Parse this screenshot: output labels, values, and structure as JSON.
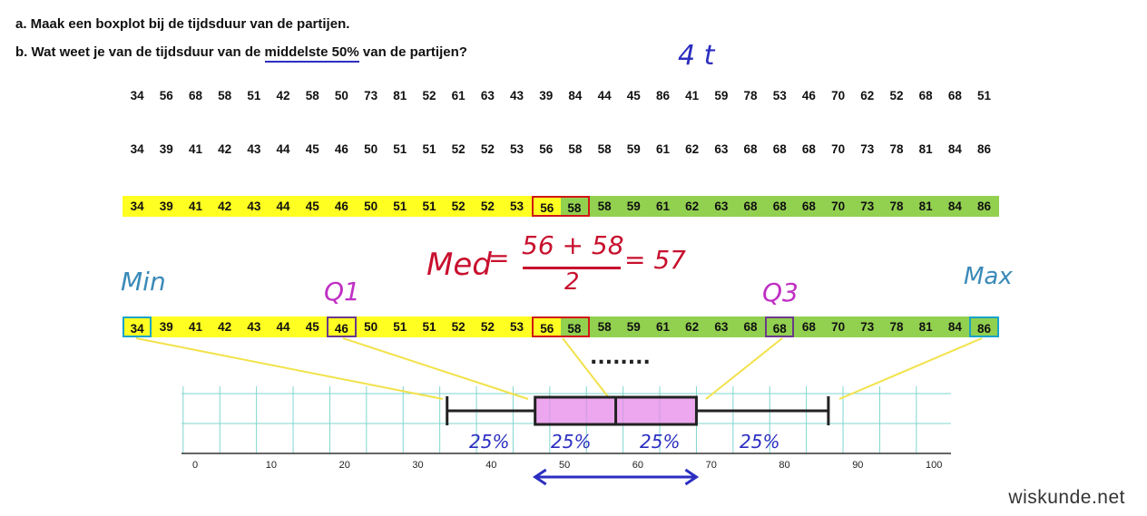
{
  "questions": {
    "a": "a. Maak een boxplot bij de tijdsduur van de partijen.",
    "b_prefix": "b. Wat weet je van de tijdsduur van de ",
    "b_highlight": "middelste 50%",
    "b_suffix": " van de partijen?"
  },
  "raw_data": [
    "34",
    "56",
    "68",
    "58",
    "51",
    "42",
    "58",
    "50",
    "73",
    "81",
    "52",
    "61",
    "63",
    "43",
    "39",
    "84",
    "44",
    "45",
    "86",
    "41",
    "59",
    "78",
    "53",
    "46",
    "70",
    "62",
    "52",
    "68",
    "68",
    "51"
  ],
  "sorted_data": [
    "34",
    "39",
    "41",
    "42",
    "43",
    "44",
    "45",
    "46",
    "50",
    "51",
    "51",
    "52",
    "52",
    "53",
    "56",
    "58",
    "58",
    "59",
    "61",
    "62",
    "63",
    "68",
    "68",
    "68",
    "70",
    "73",
    "78",
    "81",
    "84",
    "86"
  ],
  "annotations": {
    "top_right": "4 t",
    "median_label": "Med",
    "median_fraction_top": "56 + 58",
    "median_fraction_bottom": "2",
    "median_result": "= 57",
    "min": "Min",
    "q1": "Q1",
    "q3": "Q3",
    "max": "Max",
    "dots": "........",
    "quarters": [
      "25%",
      "25%",
      "25%",
      "25%"
    ]
  },
  "axis": {
    "ticks": [
      "0",
      "10",
      "20",
      "30",
      "40",
      "50",
      "60",
      "70",
      "80",
      "90",
      "100"
    ]
  },
  "boxplot": {
    "min": 34,
    "q1": 46,
    "median": 57,
    "q3": 68,
    "max": 86
  },
  "colors": {
    "lower_half": "#ffff22",
    "upper_half": "#92d050",
    "median_box": "#d01717",
    "min_max_box": "#18a3c8",
    "quartile_box": "#6a3a8a",
    "grid": "#7fd6cf",
    "box_fill": "#e58ae8",
    "ink_blue": "#2b2ec0",
    "ink_red": "#c8102e",
    "ink_magenta": "#c02fc4",
    "ink_cyan": "#3a8ab8",
    "connector": "#f2e24a"
  },
  "watermark": "wiskunde.net"
}
